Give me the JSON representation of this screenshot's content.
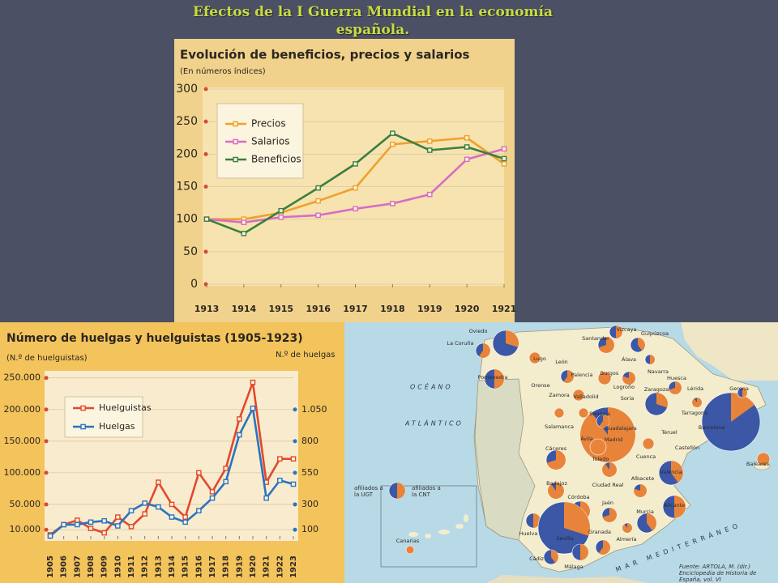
{
  "title": "Efectos de la I Guerra Mundial en la economía española.",
  "chart_data": [
    {
      "type": "line",
      "title": "Evolución de beneficios, precios y salarios",
      "subtitle": "(En números índices)",
      "x": [
        1913,
        1914,
        1915,
        1916,
        1917,
        1918,
        1919,
        1920,
        1921
      ],
      "xlim": [
        1913,
        1921
      ],
      "xticks": [
        1913,
        1914,
        1915,
        1916,
        1917,
        1918,
        1919,
        1920,
        1921
      ],
      "ylim": [
        0,
        300
      ],
      "yticks": [
        0,
        50,
        100,
        150,
        200,
        250,
        300
      ],
      "grid": true,
      "legend": "upper left",
      "series": [
        {
          "name": "Precios",
          "color": "#f0a02c",
          "values": [
            100,
            100,
            110,
            128,
            148,
            215,
            220,
            225,
            185
          ]
        },
        {
          "name": "Salarios",
          "color": "#d86cc4",
          "values": [
            100,
            95,
            103,
            106,
            116,
            124,
            138,
            192,
            208
          ]
        },
        {
          "name": "Beneficios",
          "color": "#3a7f3e",
          "values": [
            100,
            78,
            113,
            148,
            185,
            232,
            206,
            211,
            193
          ]
        }
      ]
    },
    {
      "type": "line",
      "title": "Número de huelgas y huelguistas (1905-1923)",
      "ylabel": "(N.º de huelguistas)",
      "y2label": "N.º de huelgas",
      "x": [
        1905,
        1906,
        1907,
        1908,
        1909,
        1910,
        1911,
        1912,
        1913,
        1914,
        1915,
        1916,
        1917,
        1918,
        1919,
        1920,
        1921,
        1922,
        1923
      ],
      "xlim": [
        1905,
        1923
      ],
      "xticks": [
        1905,
        1906,
        1907,
        1908,
        1909,
        1910,
        1911,
        1912,
        1913,
        1914,
        1915,
        1916,
        1917,
        1918,
        1919,
        1920,
        1921,
        1922,
        1923
      ],
      "ylim": [
        0,
        256000
      ],
      "yticks": [
        {
          "value": 10000,
          "label": "10.000"
        },
        {
          "value": 50000,
          "label": "50.000"
        },
        {
          "value": 100000,
          "label": "100.000"
        },
        {
          "value": 150000,
          "label": "150.000"
        },
        {
          "value": 200000,
          "label": "200.000"
        },
        {
          "value": 250000,
          "label": "250.000"
        }
      ],
      "y2lim": [
        50,
        1330
      ],
      "y2ticks": [
        100,
        300,
        550,
        800,
        {
          "value": 1050,
          "label": "1.050"
        }
      ],
      "grid": true,
      "legend": "upper left",
      "series": [
        {
          "name": "Huelguistas",
          "color": "#e2482e",
          "values": [
            2000,
            18000,
            25000,
            12000,
            5000,
            30000,
            15000,
            35000,
            85000,
            50000,
            30000,
            100000,
            70000,
            107000,
            185000,
            243000,
            85000,
            122000,
            122000
          ]
        },
        {
          "name": "Huelgas",
          "color": "#2a74c0",
          "axis": "y2",
          "values": [
            50,
            140,
            140,
            160,
            170,
            130,
            250,
            310,
            280,
            200,
            160,
            250,
            350,
            480,
            850,
            1060,
            350,
            490,
            460
          ]
        }
      ]
    }
  ],
  "map": {
    "places": [
      "Oviedo",
      "La Coruña",
      "Santander",
      "Vizcaya",
      "Guipúzcoa",
      "Lugo",
      "León",
      "Pontevedra",
      "Orense",
      "Palencia",
      "Burgos",
      "Álava",
      "Navarra",
      "Huesca",
      "Lérida",
      "Gerona",
      "Barcelona",
      "Zamora",
      "Valladolid",
      "Logroño",
      "Zaragoza",
      "Soria",
      "Tarragona",
      "Segovia",
      "Guadalajara",
      "Salamanca",
      "Ávila",
      "Madrid",
      "Teruel",
      "Castellón",
      "Toledo",
      "Cuenca",
      "Cáceres",
      "Valencia",
      "Badajoz",
      "Ciudad Real",
      "Albacete",
      "Alicante",
      "Baleares",
      "Córdoba",
      "Jaén",
      "Murcia",
      "Huelva",
      "Sevilla",
      "Granada",
      "Almería",
      "Cádiz",
      "Málaga",
      "Canarias"
    ],
    "seas": [
      "OCÉANO",
      "ATLÁNTICO",
      "MAR MEDITERRÁNEO"
    ],
    "legend": [
      "afiliados a la UGT",
      "afiliados a la CNT"
    ],
    "source": "Fuente: ARTOLA, M. (dir.) Enciclopedia de Historia de España, vol. VI"
  }
}
